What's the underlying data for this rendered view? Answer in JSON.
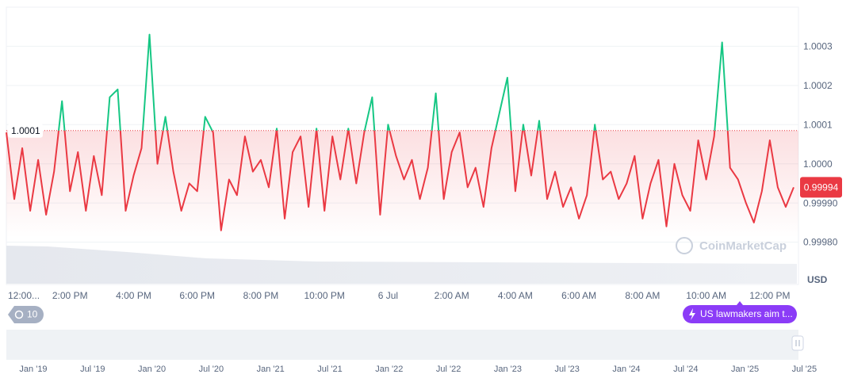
{
  "chart_data": {
    "type": "line",
    "categories": [
      "12:00...",
      null,
      null,
      null,
      null,
      null,
      null,
      null,
      "2:00 PM",
      null,
      null,
      null,
      null,
      null,
      null,
      null,
      "4:00 PM",
      null,
      null,
      null,
      null,
      null,
      null,
      null,
      "6:00 PM",
      null,
      null,
      null,
      null,
      null,
      null,
      null,
      "8:00 PM",
      null,
      null,
      null,
      null,
      null,
      null,
      null,
      "10:00 PM",
      null,
      null,
      null,
      null,
      null,
      null,
      null,
      "6 Jul",
      null,
      null,
      null,
      null,
      null,
      null,
      null,
      "2:00 AM",
      null,
      null,
      null,
      null,
      null,
      null,
      null,
      "4:00 AM",
      null,
      null,
      null,
      null,
      null,
      null,
      null,
      "6:00 AM",
      null,
      null,
      null,
      null,
      null,
      null,
      null,
      "8:00 AM",
      null,
      null,
      null,
      null,
      null,
      null,
      null,
      "10:00 AM",
      null,
      null,
      null,
      null,
      null,
      null,
      null,
      "12:00 PM",
      null,
      null,
      null
    ],
    "series": [
      {
        "name": "Price",
        "color": "#ea3943",
        "color_above": "#16c784",
        "values": [
          1.00008,
          0.99991,
          1.00004,
          0.99988,
          1.00001,
          0.99987,
          0.99998,
          1.00016,
          0.99993,
          1.00003,
          0.99988,
          1.00002,
          0.99992,
          1.00017,
          1.00019,
          0.99988,
          0.99997,
          1.00004,
          1.00033,
          1.0,
          1.00012,
          0.99998,
          0.99988,
          0.99995,
          0.99993,
          1.00012,
          1.00008,
          0.99983,
          0.99996,
          0.99992,
          1.00007,
          0.99998,
          1.00001,
          0.99994,
          1.00009,
          0.99986,
          1.00003,
          1.00007,
          0.99989,
          1.00009,
          0.99988,
          1.00007,
          0.99996,
          1.00009,
          0.99995,
          1.00008,
          1.00017,
          0.99987,
          1.0001,
          1.00002,
          0.99996,
          1.00001,
          0.99991,
          0.99999,
          1.00018,
          0.99991,
          1.00003,
          1.00008,
          0.99994,
          0.99999,
          0.99989,
          1.00004,
          1.00013,
          1.00022,
          0.99993,
          1.0001,
          0.99997,
          1.00011,
          0.99991,
          0.99998,
          0.99989,
          0.99994,
          0.99986,
          0.99992,
          1.0001,
          0.99996,
          0.99998,
          0.99991,
          0.99995,
          1.00002,
          0.99986,
          0.99995,
          1.00001,
          0.99984,
          1.0,
          0.99992,
          0.99988,
          1.00006,
          0.99996,
          1.00007,
          1.00031,
          0.99999,
          0.99996,
          0.9999,
          0.99985,
          0.99993,
          1.00006,
          0.99994,
          0.99989,
          0.99994
        ]
      }
    ],
    "ylim": [
      0.9997,
      1.0004
    ],
    "yticks": [
      {
        "value": 0.9998,
        "label": "0.99980"
      },
      {
        "value": 0.9999,
        "label": "0.99990"
      },
      {
        "value": 1,
        "label": "1.0000"
      },
      1.0001,
      1.0002,
      1.0003
    ],
    "grid": true,
    "baseline": {
      "value": 1.000085,
      "label": "1.0001"
    },
    "current_price": 0.99994,
    "unit": "USD",
    "watermark": "CoinMarketCap",
    "events_count": 10,
    "news": "US lawmakers aim t...",
    "navigator_labels": [
      "Jan '19",
      "Jul '19",
      "Jan '20",
      "Jul '20",
      "Jan '21",
      "Jul '21",
      "Jan '22",
      "Jul '22",
      "Jan '23",
      "Jul '23",
      "Jan '24",
      "Jul '24",
      "Jan '25",
      "Jul '25"
    ]
  }
}
